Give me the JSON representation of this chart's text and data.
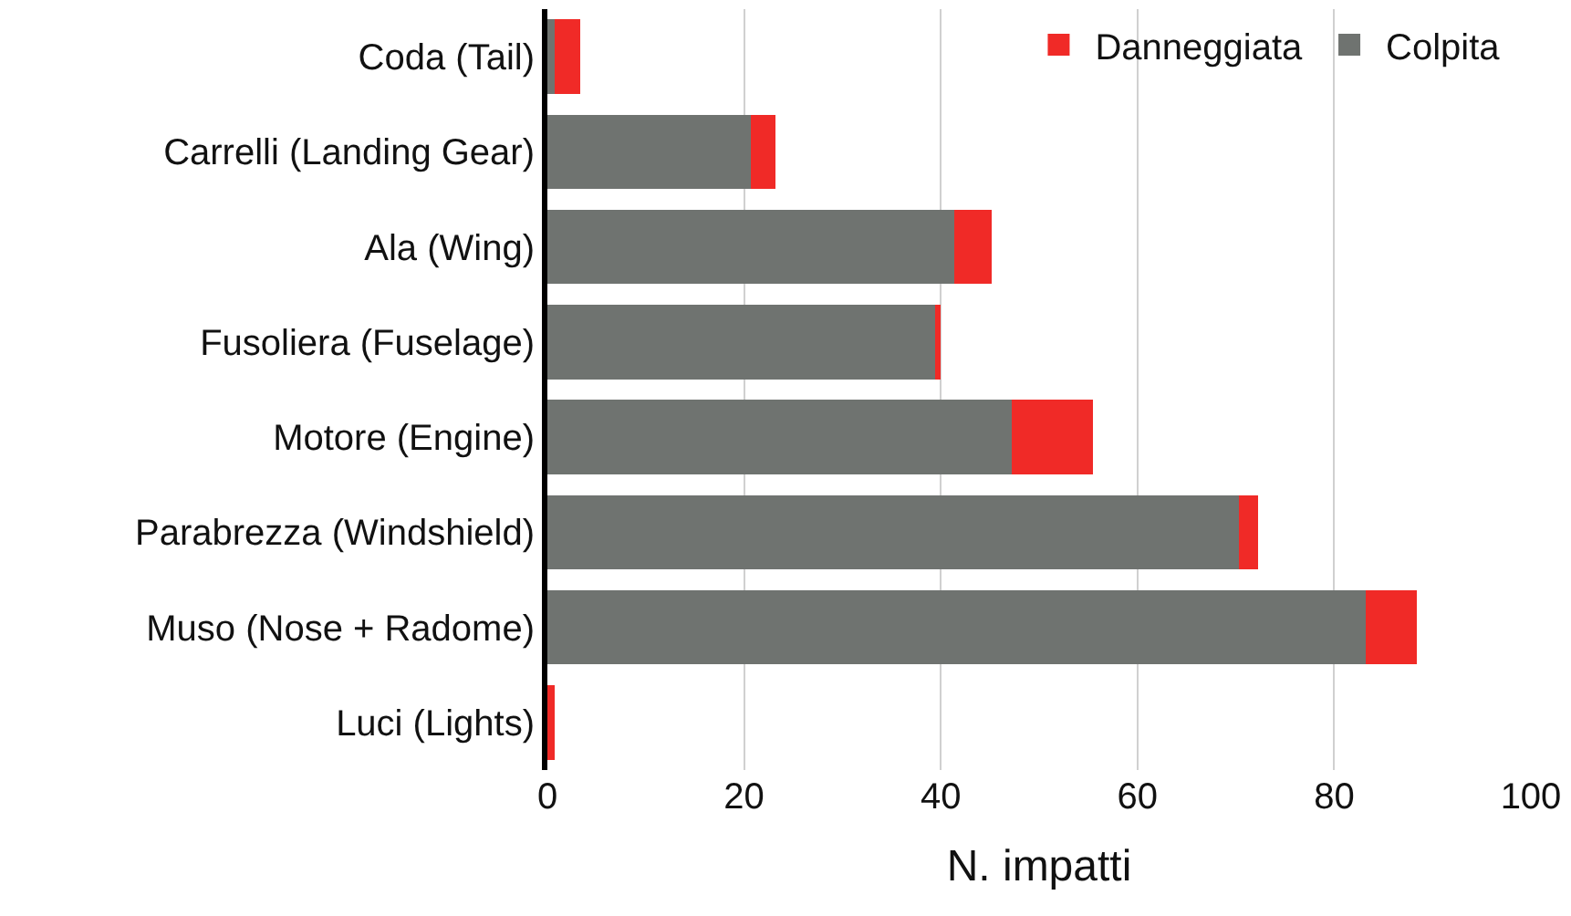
{
  "chart_data": {
    "type": "bar",
    "orientation": "horizontal",
    "stacked": true,
    "xlabel": "N. impatti",
    "categories": [
      "Coda (Tail)",
      "Carrelli (Landing Gear)",
      "Ala (Wing)",
      "Fusoliera (Fuselage)",
      "Motore (Engine)",
      "Parabrezza (Windshield)",
      "Muso (Nose + Radome)",
      "Luci (Lights)"
    ],
    "series": [
      {
        "name": "Colpita",
        "color": "#6f7370",
        "values": [
          0.7,
          20.7,
          41.4,
          39.4,
          47.2,
          70.3,
          83.2,
          0
        ]
      },
      {
        "name": "Danneggiata",
        "color": "#f02a27",
        "values": [
          2.6,
          2.5,
          3.8,
          0.6,
          8.3,
          2.0,
          5.2,
          0.7
        ]
      }
    ],
    "xlim": [
      0,
      100
    ],
    "xticks": [
      0,
      20,
      40,
      60,
      80,
      100
    ],
    "grid": "x",
    "legend": "top right"
  }
}
